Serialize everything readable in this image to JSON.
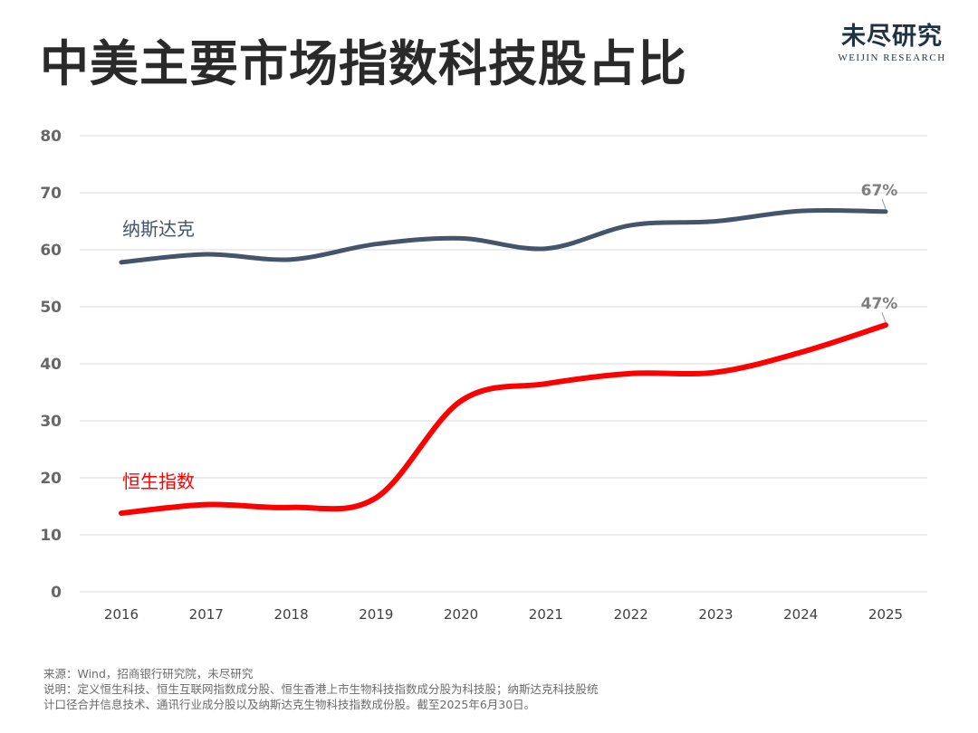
{
  "header": {
    "title": "中美主要市场指数科技股占比",
    "logo_cn": "未尽研究",
    "logo_en": "WEIJIN RESEARCH"
  },
  "footer": {
    "source": "来源：Wind，招商银行研究院，未尽研究",
    "note_line1": "说明：定义恒生科技、恒生互联网指数成分股、恒生香港上市生物科技指数成分股为科技股；纳斯达克科技股统",
    "note_line2": "计口径合并信息技术、通讯行业成分股以及纳斯达克生物科技指数成份股。截至2025年6月30日。"
  },
  "chart_data": {
    "type": "line",
    "title": "中美主要市场指数科技股占比",
    "x": [
      "2016",
      "2017",
      "2018",
      "2019",
      "2020",
      "2021",
      "2022",
      "2023",
      "2024",
      "2025"
    ],
    "ylim": [
      0,
      80
    ],
    "yticks": [
      0,
      10,
      20,
      30,
      40,
      50,
      60,
      70,
      80
    ],
    "grid": true,
    "series": [
      {
        "name": "纳斯达克",
        "color": "#44546a",
        "values": [
          57.8,
          59.2,
          58.3,
          61.0,
          62.0,
          60.2,
          64.3,
          65.0,
          66.8,
          66.7
        ],
        "end_label": "67%"
      },
      {
        "name": "恒生指数",
        "color": "#ff0000",
        "values": [
          13.8,
          15.3,
          14.8,
          16.5,
          33.5,
          36.5,
          38.3,
          38.5,
          42.0,
          46.8
        ],
        "end_label": "47%"
      }
    ]
  }
}
